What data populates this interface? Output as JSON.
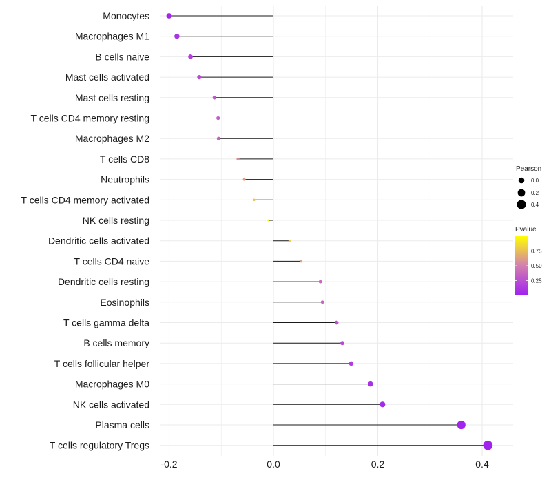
{
  "chart_data": {
    "type": "lollipop",
    "title": "",
    "xlabel": "",
    "ylabel": "",
    "xlim": [
      -0.25,
      0.43
    ],
    "xticks": [
      -0.2,
      0.0,
      0.2,
      0.4
    ],
    "xtick_labels": [
      "-0.2",
      "0.0",
      "0.2",
      "0.4"
    ],
    "grid": true,
    "legend_position": "right",
    "categories": [
      "Monocytes",
      "Macrophages M1",
      "B cells naive",
      "Mast cells activated",
      "Mast cells resting",
      "T cells CD4 memory resting",
      "Macrophages M2",
      "T cells CD8",
      "Neutrophils",
      "T cells CD4 memory activated",
      "NK cells resting",
      "Dendritic cells activated",
      "T cells CD4 naive",
      "Dendritic cells resting",
      "Eosinophils",
      "T cells gamma delta",
      "B cells memory",
      "T cells follicular helper",
      "Macrophages M0",
      "NK cells activated",
      "Plasma cells",
      "T cells regulatory  Tregs"
    ],
    "values": [
      -0.2,
      -0.185,
      -0.159,
      -0.142,
      -0.113,
      -0.106,
      -0.105,
      -0.068,
      -0.056,
      -0.037,
      -0.01,
      0.031,
      0.053,
      0.09,
      0.094,
      0.121,
      0.132,
      0.149,
      0.186,
      0.209,
      0.36,
      0.411
    ],
    "pvalues": [
      0.03,
      0.1,
      0.18,
      0.23,
      0.3,
      0.33,
      0.34,
      0.56,
      0.63,
      0.75,
      0.97,
      0.82,
      0.62,
      0.38,
      0.37,
      0.26,
      0.22,
      0.15,
      0.09,
      0.05,
      0.02,
      0.01
    ],
    "size_legend": {
      "title": "Pearson",
      "labels": [
        "0.0",
        "0.2",
        "0.4"
      ],
      "values": [
        0.0,
        0.2,
        0.4
      ]
    },
    "color_legend": {
      "title": "Pvalue",
      "labels": [
        "0.75",
        "0.50",
        "0.25"
      ],
      "values": [
        0.75,
        0.5,
        0.25
      ],
      "range": [
        0.0,
        1.0
      ],
      "low_color": "#a020f0",
      "high_color": "#ffff00"
    },
    "line_color": "#1a1a1a",
    "grid_color": "#ebebeb"
  }
}
